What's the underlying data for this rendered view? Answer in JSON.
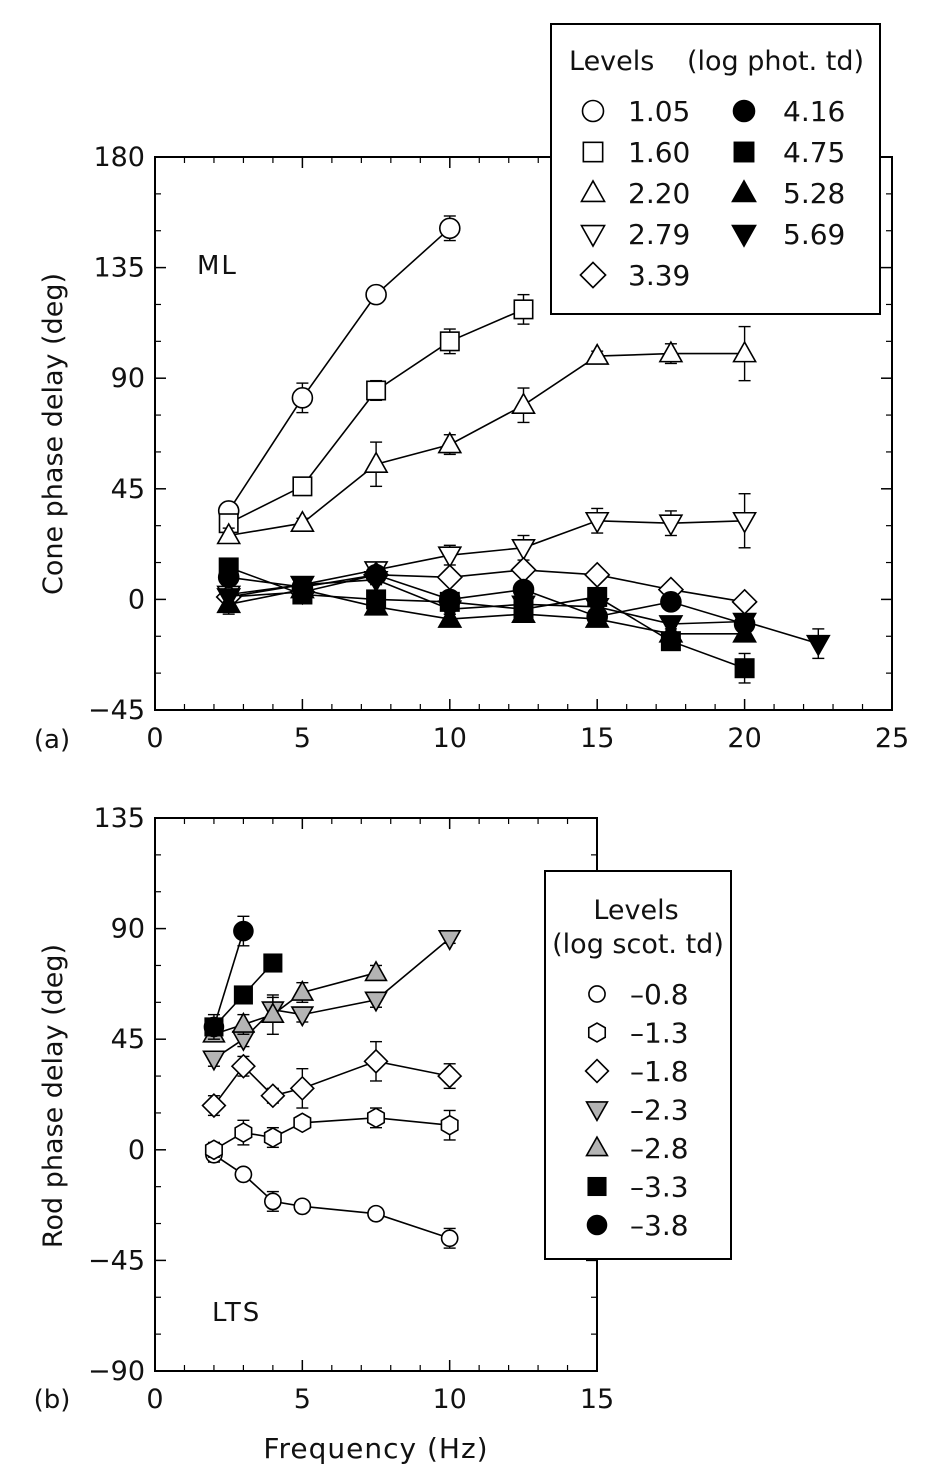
{
  "chart_data": [
    {
      "type": "scatter",
      "panel_label": "(a)",
      "annotation": "ML",
      "xlabel": "",
      "ylabel": "Cone phase delay (deg)",
      "xlim": [
        0,
        25
      ],
      "ylim": [
        -45,
        180
      ],
      "xticks": [
        0,
        5,
        10,
        15,
        20,
        25
      ],
      "yticks": [
        -45,
        0,
        45,
        90,
        135,
        180
      ],
      "grid": false,
      "legend": {
        "position": "top-right",
        "title_left": "Levels",
        "title_right": "(log phot. td)"
      },
      "series": [
        {
          "name": "1.05",
          "marker": "circle",
          "fill": "#ffffff",
          "x": [
            2.5,
            5,
            7.5,
            10
          ],
          "y": [
            36,
            82,
            124,
            151
          ],
          "err": [
            3,
            6,
            3,
            5
          ]
        },
        {
          "name": "1.60",
          "marker": "square",
          "fill": "#ffffff",
          "x": [
            2.5,
            5,
            7.5,
            10,
            12.5
          ],
          "y": [
            31,
            46,
            85,
            105,
            118
          ],
          "err": [
            3,
            3,
            4,
            5,
            6
          ]
        },
        {
          "name": "2.20",
          "marker": "triangle-up",
          "fill": "#ffffff",
          "x": [
            2.5,
            5,
            7.5,
            10,
            12.5,
            15,
            17.5,
            20
          ],
          "y": [
            26,
            31,
            55,
            63,
            79,
            99,
            100,
            100
          ],
          "err": [
            3,
            2,
            9,
            4,
            7,
            2,
            4,
            11
          ]
        },
        {
          "name": "2.79",
          "marker": "triangle-down",
          "fill": "#ffffff",
          "x": [
            2.5,
            5,
            7.5,
            10,
            12.5,
            15,
            17.5,
            20
          ],
          "y": [
            2,
            6,
            12,
            18,
            21,
            32,
            31,
            32
          ],
          "err": [
            3,
            2,
            2,
            4,
            5,
            5,
            5,
            11
          ]
        },
        {
          "name": "3.39",
          "marker": "diamond",
          "fill": "#ffffff",
          "x": [
            2.5,
            5,
            7.5,
            10,
            12.5,
            15,
            17.5,
            20
          ],
          "y": [
            1,
            3,
            10,
            9,
            12,
            10,
            4,
            -1
          ],
          "err": [
            2,
            2,
            2,
            2,
            2,
            2,
            2,
            2
          ]
        },
        {
          "name": "4.16",
          "marker": "circle",
          "fill": "#000000",
          "x": [
            2.5,
            5,
            7.5,
            10,
            12.5,
            15,
            17.5,
            20
          ],
          "y": [
            9,
            5,
            10,
            0,
            4,
            -7,
            -1,
            -10
          ],
          "err": [
            3,
            2,
            3,
            2,
            2,
            3,
            2,
            2
          ]
        },
        {
          "name": "4.75",
          "marker": "square",
          "fill": "#000000",
          "x": [
            2.5,
            5,
            7.5,
            10,
            12.5,
            15,
            17.5,
            20
          ],
          "y": [
            13,
            2,
            0,
            -1,
            -4,
            1,
            -17,
            -28
          ],
          "err": [
            3,
            2,
            2,
            2,
            2,
            2,
            3,
            6
          ]
        },
        {
          "name": "5.28",
          "marker": "triangle-up",
          "fill": "#000000",
          "x": [
            2.5,
            5,
            7.5,
            10,
            12.5,
            15,
            17.5,
            20
          ],
          "y": [
            -2,
            4,
            -3,
            -8,
            -6,
            -8,
            -14,
            -14
          ],
          "err": [
            4,
            2,
            3,
            2,
            2,
            2,
            3,
            3
          ]
        },
        {
          "name": "5.69",
          "marker": "triangle-down",
          "fill": "#000000",
          "x": [
            2.5,
            5,
            7.5,
            10,
            12.5,
            15,
            17.5,
            20,
            22.5
          ],
          "y": [
            1,
            6,
            8,
            -4,
            -2,
            -3,
            -10,
            -9,
            -18
          ],
          "err": [
            3,
            2,
            2,
            2,
            2,
            2,
            2,
            3,
            6
          ]
        }
      ]
    },
    {
      "type": "scatter",
      "panel_label": "(b)",
      "annotation": "LTS",
      "xlabel": "Frequency (Hz)",
      "ylabel": "Rod phase delay (deg)",
      "xlim": [
        0,
        15
      ],
      "ylim": [
        -90,
        135
      ],
      "xticks": [
        0,
        5,
        10,
        15
      ],
      "yticks": [
        -90,
        -45,
        0,
        45,
        90,
        135
      ],
      "grid": false,
      "legend": {
        "position": "right",
        "title_left": "Levels",
        "title_right": "(log scot. td)"
      },
      "series": [
        {
          "name": "–0.8",
          "marker": "circle-small",
          "fill": "#ffffff",
          "x": [
            2,
            3,
            4,
            5,
            7.5,
            10
          ],
          "y": [
            -2,
            -10,
            -21,
            -23,
            -26,
            -36
          ],
          "err": [
            3,
            2,
            4,
            2,
            2,
            4
          ]
        },
        {
          "name": "–1.3",
          "marker": "hexagon",
          "fill": "#ffffff",
          "x": [
            2,
            3,
            4,
            5,
            7.5,
            10
          ],
          "y": [
            0,
            7,
            5,
            11,
            13,
            10
          ],
          "err": [
            3,
            5,
            4,
            2,
            4,
            6
          ]
        },
        {
          "name": "–1.8",
          "marker": "diamond",
          "fill": "#ffffff",
          "x": [
            2,
            3,
            4,
            5,
            7.5,
            10
          ],
          "y": [
            18,
            34,
            22,
            25,
            36,
            30
          ],
          "err": [
            4,
            4,
            3,
            8,
            8,
            5
          ]
        },
        {
          "name": "–2.3",
          "marker": "triangle-down",
          "fill": "#b4b4b4",
          "x": [
            2,
            3,
            4,
            5,
            7.5,
            10
          ],
          "y": [
            37,
            45,
            57,
            55,
            61,
            86
          ],
          "err": [
            3,
            3,
            5,
            3,
            3,
            2
          ]
        },
        {
          "name": "–2.8",
          "marker": "triangle-up",
          "fill": "#b4b4b4",
          "x": [
            2,
            3,
            4,
            5,
            7.5
          ],
          "y": [
            47,
            51,
            55,
            64,
            72
          ],
          "err": [
            3,
            4,
            8,
            4,
            3
          ]
        },
        {
          "name": "–3.3",
          "marker": "square",
          "fill": "#000000",
          "x": [
            2,
            3,
            4
          ],
          "y": [
            50,
            63,
            76
          ],
          "err": [
            3,
            3,
            2
          ]
        },
        {
          "name": "–3.8",
          "marker": "circle",
          "fill": "#000000",
          "x": [
            2,
            3
          ],
          "y": [
            50,
            89
          ],
          "err": [
            5,
            6
          ]
        }
      ]
    }
  ]
}
